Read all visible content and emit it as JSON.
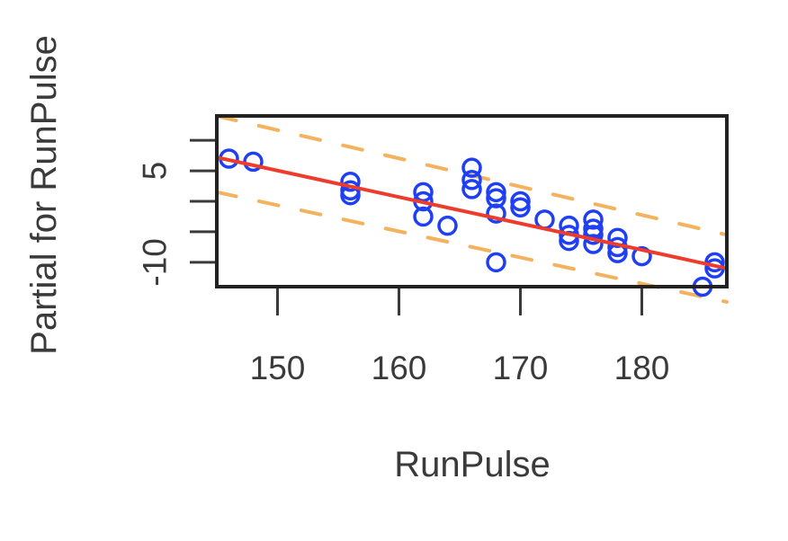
{
  "chart_data": {
    "type": "scatter",
    "xlabel": "RunPulse",
    "ylabel": "Partial for RunPulse",
    "xlim": [
      145,
      187
    ],
    "ylim": [
      -14,
      14
    ],
    "x_ticks": [
      150,
      160,
      170,
      180
    ],
    "x_tick_labels": [
      "150",
      "160",
      "170",
      "180"
    ],
    "y_ticks": [
      -10,
      -5,
      0,
      5,
      10
    ],
    "y_tick_labels": [
      "-10",
      "",
      "",
      "5",
      ""
    ],
    "grid": false,
    "points": [
      {
        "x": 146,
        "y": 7.0
      },
      {
        "x": 148,
        "y": 6.5
      },
      {
        "x": 156,
        "y": 3.2
      },
      {
        "x": 156,
        "y": 1.8
      },
      {
        "x": 156,
        "y": 1.0
      },
      {
        "x": 162,
        "y": 1.5
      },
      {
        "x": 162,
        "y": 0.0
      },
      {
        "x": 162,
        "y": -2.5
      },
      {
        "x": 164,
        "y": -4.0
      },
      {
        "x": 166,
        "y": 5.5
      },
      {
        "x": 166,
        "y": 3.5
      },
      {
        "x": 166,
        "y": 2.0
      },
      {
        "x": 168,
        "y": 1.5
      },
      {
        "x": 168,
        "y": 0.5
      },
      {
        "x": 168,
        "y": -2.0
      },
      {
        "x": 168,
        "y": -10.0
      },
      {
        "x": 170,
        "y": 0.0
      },
      {
        "x": 170,
        "y": -1.0
      },
      {
        "x": 172,
        "y": -3.0
      },
      {
        "x": 174,
        "y": -4.0
      },
      {
        "x": 174,
        "y": -5.5
      },
      {
        "x": 174,
        "y": -6.5
      },
      {
        "x": 176,
        "y": -3.0
      },
      {
        "x": 176,
        "y": -4.5
      },
      {
        "x": 176,
        "y": -5.5
      },
      {
        "x": 176,
        "y": -7.0
      },
      {
        "x": 178,
        "y": -6.0
      },
      {
        "x": 178,
        "y": -7.5
      },
      {
        "x": 178,
        "y": -8.5
      },
      {
        "x": 180,
        "y": -9.0
      },
      {
        "x": 185,
        "y": -14.0
      },
      {
        "x": 186,
        "y": -10.0
      },
      {
        "x": 186,
        "y": -11.0
      }
    ],
    "fit_line": {
      "x": [
        145,
        187
      ],
      "y": [
        7.2,
        -11.0
      ]
    },
    "confidence_upper": {
      "x": [
        145,
        187
      ],
      "y": [
        14.0,
        -5.5
      ]
    },
    "confidence_lower": {
      "x": [
        145,
        187
      ],
      "y": [
        1.5,
        -16.5
      ]
    },
    "colors": {
      "points": "#1f3ff5",
      "fit_line": "#ee3b2b",
      "confidence": "#f4b25e",
      "axis": "#3a3a3a",
      "frame": "#222222"
    }
  }
}
